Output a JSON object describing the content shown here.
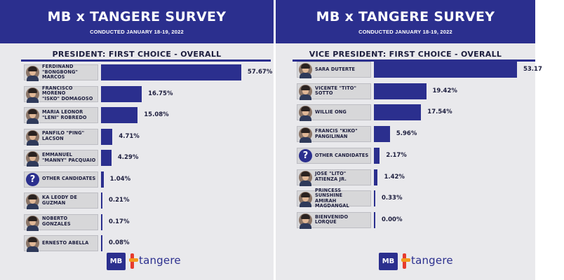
{
  "colors": {
    "primary": "#2b2f8e",
    "label_bg": "#d7d7d9",
    "text_dark": "#1c1d3d",
    "panel_bg": "#e9e9ec"
  },
  "left_panel": {
    "title": "MB x TANGERE SURVEY",
    "subtitle": "CONDUCTED JANUARY 18-19, 2022",
    "section": "PRESIDENT: FIRST CHOICE - OVERALL",
    "logo_text": "MB",
    "brand": "tangere"
  },
  "right_panel": {
    "title": "MB x TANGERE SURVEY",
    "subtitle": "CONDUCTED JANUARY 18-19, 2022",
    "section": "VICE PRESIDENT: FIRST CHOICE - OVERALL",
    "logo_text": "MB",
    "brand": "tangere"
  },
  "chart_data": [
    {
      "type": "bar",
      "title": "PRESIDENT: FIRST CHOICE - OVERALL",
      "categories": [
        "FERDINAND\n\"BONGBONG\" MARCOS",
        "FRANCISCO MORENO\n\"ISKO\" DOMAGOSO",
        "MARIA LEONOR\n\"LENI\" ROBREDO",
        "PANFILO \"PING\"\nLACSON",
        "EMMANUEL\n\"MANNY\" PACQUAIO",
        "OTHER CANDIDATES",
        "KA LEODY DE GUZMAN",
        "NOBERTO GONZALES",
        "ERNESTO ABELLA"
      ],
      "values": [
        57.67,
        16.75,
        15.08,
        4.71,
        4.29,
        1.04,
        0.21,
        0.17,
        0.08
      ],
      "value_labels": [
        "57.67%",
        "16.75%",
        "15.08%",
        "4.71%",
        "4.29%",
        "1.04%",
        "0.21%",
        "0.17%",
        "0.08%"
      ],
      "icons": [
        "photo-icon",
        "photo-icon",
        "photo-icon",
        "photo-icon",
        "photo-icon",
        "question-mark-icon",
        "photo-icon",
        "photo-icon",
        "photo-icon"
      ],
      "xlim": [
        0,
        60
      ],
      "orientation": "horizontal"
    },
    {
      "type": "bar",
      "title": "VICE PRESIDENT: FIRST CHOICE - OVERALL",
      "categories": [
        "SARA DUTERTE",
        "VICENTE \"TITO\"\nSOTTO",
        "WILLIE ONG",
        "FRANCIS \"KIKO\"\nPANGILINAN",
        "OTHER CANDIDATES",
        "JOSE \"LITO\"\nATIENZA JR.",
        "PRINCESS SUNSHINE\nAMIRAH MAGDANGAL",
        "BIENVENIDO LORQUE"
      ],
      "values": [
        53.17,
        19.42,
        17.54,
        5.96,
        2.17,
        1.42,
        0.33,
        0.0
      ],
      "value_labels": [
        "53.17",
        "19.42%",
        "17.54%",
        "5.96%",
        "2.17%",
        "1.42%",
        "0.33%",
        "0.00%"
      ],
      "icons": [
        "photo-icon",
        "photo-icon",
        "photo-icon",
        "photo-icon",
        "question-mark-icon",
        "photo-icon",
        "photo-icon",
        "photo-icon"
      ],
      "xlim": [
        0,
        55
      ],
      "orientation": "horizontal"
    }
  ]
}
